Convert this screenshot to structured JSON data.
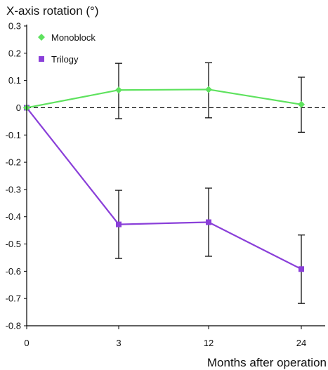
{
  "chart_data": {
    "type": "line",
    "title": "X-axis rotation (°)",
    "xlabel": "Months after operation",
    "ylabel": "",
    "x": [
      0,
      3,
      12,
      24
    ],
    "x_tick_labels": [
      "0",
      "3",
      "12",
      "24"
    ],
    "ylim": [
      -0.8,
      0.3
    ],
    "y_ticks": [
      0.3,
      0.2,
      0.1,
      0,
      -0.1,
      -0.2,
      -0.3,
      -0.4,
      -0.5,
      -0.6,
      -0.7,
      -0.8
    ],
    "y_tick_labels": [
      "0.3",
      "0.2",
      "0.1",
      "0",
      "-0.1",
      "-0.2",
      "-0.3",
      "-0.4",
      "-0.5",
      "-0.6",
      "-0.7",
      "-0.8"
    ],
    "reference_line": {
      "y": 0,
      "style": "dashed"
    },
    "grid": false,
    "legend_position": "top-left",
    "series": [
      {
        "name": "Monoblock",
        "color": "#5ee25e",
        "marker": "diamond",
        "values": [
          0,
          0.065,
          0.067,
          0.012
        ],
        "error_lower": [
          null,
          -0.04,
          -0.037,
          -0.09
        ],
        "error_upper": [
          null,
          0.163,
          0.165,
          0.112
        ]
      },
      {
        "name": "Trilogy",
        "color": "#8a3fd9",
        "marker": "square",
        "values": [
          0,
          -0.428,
          -0.42,
          -0.592
        ],
        "error_lower": [
          null,
          -0.553,
          -0.545,
          -0.718
        ],
        "error_upper": [
          null,
          -0.303,
          -0.295,
          -0.467
        ]
      }
    ]
  }
}
